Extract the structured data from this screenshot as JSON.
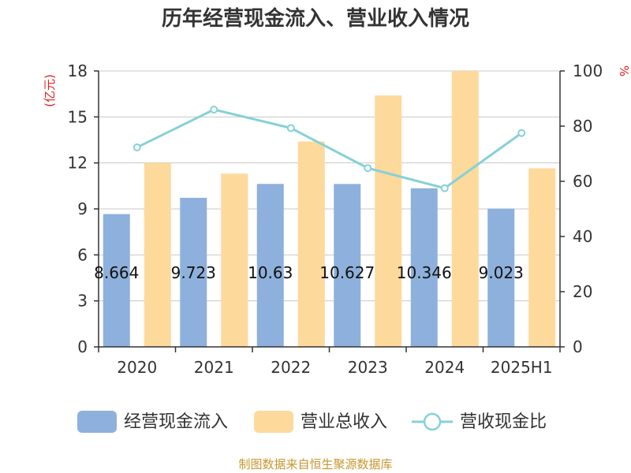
{
  "chart_data": {
    "type": "bar",
    "title": "历年经营现金流入、营业收入情况",
    "categories": [
      "2020",
      "2021",
      "2022",
      "2023",
      "2024",
      "2025H1"
    ],
    "left_axis": {
      "unit": "(亿元)",
      "ticks": [
        0,
        3,
        6,
        9,
        12,
        15,
        18
      ],
      "ylim": [
        0,
        18
      ]
    },
    "right_axis": {
      "unit": "%",
      "ticks": [
        0,
        20,
        40,
        60,
        80,
        100
      ],
      "ylim": [
        0,
        100
      ]
    },
    "series": [
      {
        "name": "经营现金流入",
        "type": "bar",
        "axis": "left",
        "color": "#8eb0dc",
        "values": [
          8.664,
          9.723,
          10.63,
          10.627,
          10.346,
          9.023
        ],
        "labels": [
          "8.664",
          "9.723",
          "10.63",
          "10.627",
          "10.346",
          "9.023"
        ]
      },
      {
        "name": "营业总收入",
        "type": "bar",
        "axis": "left",
        "color": "#fdd99b",
        "values": [
          12.0,
          11.3,
          13.4,
          16.4,
          18.0,
          11.65
        ]
      },
      {
        "name": "营收现金比",
        "type": "line",
        "axis": "right",
        "color": "#86d1d8",
        "values": [
          72.3,
          86.0,
          79.3,
          64.8,
          57.5,
          77.5
        ]
      }
    ],
    "grid": true,
    "legend_position": "bottom"
  },
  "source": "制图数据来自恒生聚源数据库"
}
